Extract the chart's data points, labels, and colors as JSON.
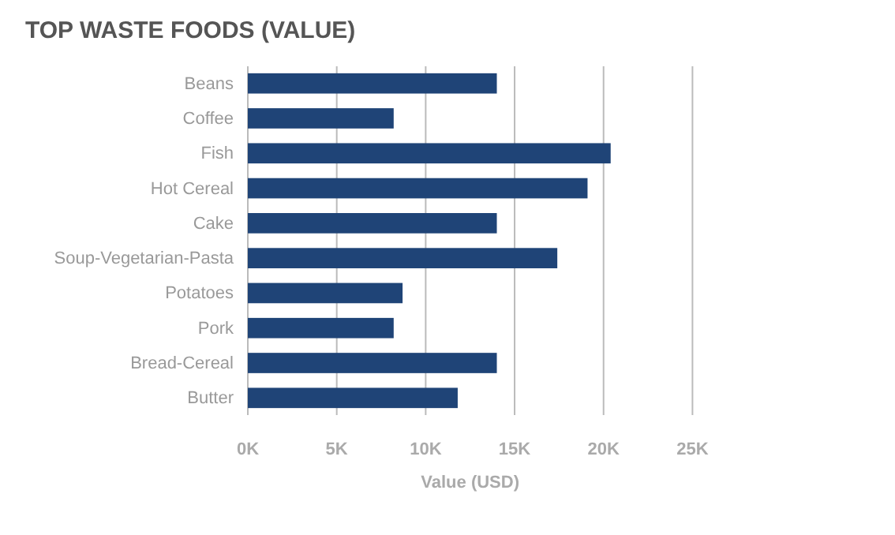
{
  "chart_data": {
    "type": "bar",
    "orientation": "horizontal",
    "title": "TOP WASTE FOODS (VALUE)",
    "xlabel": "Value (USD)",
    "categories": [
      "Beans",
      "Coffee",
      "Fish",
      "Hot Cereal",
      "Cake",
      "Soup-Vegetarian-Pasta",
      "Potatoes",
      "Pork",
      "Bread-Cereal",
      "Butter"
    ],
    "values": [
      14000,
      8200,
      20400,
      19100,
      14000,
      17400,
      8700,
      8200,
      14000,
      11800
    ],
    "color": "#1f4477",
    "xlim": [
      0,
      25000
    ],
    "xticks": [
      {
        "value": 0,
        "label": "0K"
      },
      {
        "value": 5000,
        "label": "5K"
      },
      {
        "value": 10000,
        "label": "10K"
      },
      {
        "value": 15000,
        "label": "15K"
      },
      {
        "value": 20000,
        "label": "20K"
      },
      {
        "value": 25000,
        "label": "25K"
      }
    ],
    "grid": "x"
  }
}
